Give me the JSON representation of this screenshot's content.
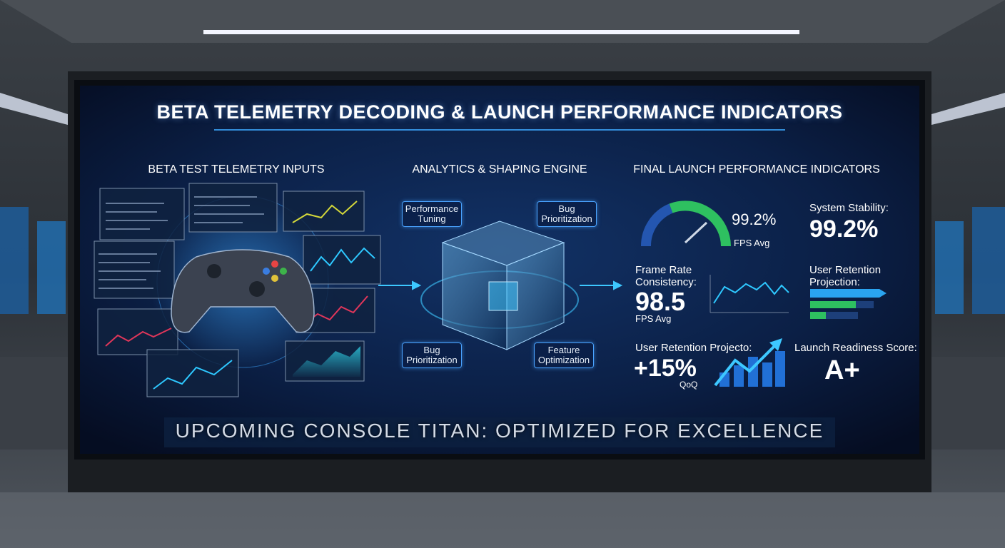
{
  "title": "BETA TELEMETRY DECODING & LAUNCH PERFORMANCE INDICATORS",
  "sections": [
    {
      "heading": "BETA TEST TELEMETRY INPUTS"
    },
    {
      "heading": "ANALYTICS & SHAPING ENGINE",
      "labels": [
        "Performance Tuning",
        "Bug Prioritization",
        "Bug Prioritization",
        "Feature Optimization"
      ]
    },
    {
      "heading": "FINAL LAUNCH PERFORMANCE INDICATORS"
    }
  ],
  "indicators": {
    "gauge": {
      "value": "99.2%",
      "caption": "FPS Avg"
    },
    "system_stability": {
      "label": "System Stability:",
      "value": "99.2%"
    },
    "frame_rate": {
      "label": "Frame Rate Consistency:",
      "value": "98.5",
      "caption": "FPS Avg"
    },
    "retention_projection": {
      "label": "User Retention Projection:"
    },
    "retention_growth": {
      "label": "User Retention Projecto:",
      "value": "+15%",
      "caption": "QoQ"
    },
    "launch_readiness": {
      "label": "Launch Readiness Score:",
      "value": "A+"
    }
  },
  "footer": "UPCOMING CONSOLE TITAN: OPTIMIZED FOR EXCELLENCE"
}
